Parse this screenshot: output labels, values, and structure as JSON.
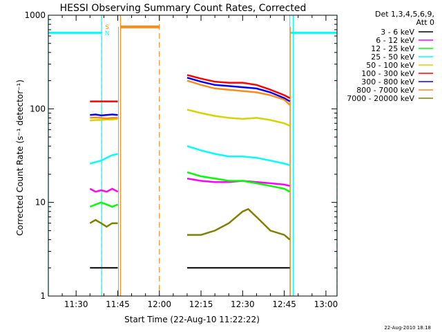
{
  "chart_data": {
    "type": "line",
    "title": "HESSI Observing Summary Count Rates, Corrected",
    "xlabel": "Start Time (22-Aug-10 11:22:22)",
    "ylabel": "Corrected Count Rate (s⁻¹ detector⁻¹)",
    "yscale": "log",
    "ylim": [
      1,
      1000
    ],
    "xlim_minutes": [
      "11:22",
      "13:02"
    ],
    "x_ticks": [
      "11:30",
      "11:45",
      "12:00",
      "12:15",
      "12:30",
      "12:45",
      "13:00"
    ],
    "x_tick_minutes": [
      30,
      45,
      60,
      75,
      90,
      105,
      120
    ],
    "y_ticks": [
      "1",
      "10",
      "100",
      "1000"
    ],
    "y_tick_values": [
      1,
      10,
      100,
      1000
    ],
    "grid": false,
    "legend_position": "right",
    "legend_header": [
      "Det 1,3,4,5,6,9,",
      "Att 0"
    ],
    "timestamp": "22-Aug-2010 18:18",
    "markers": [
      {
        "label": "S",
        "color": "#ff8c1a"
      },
      {
        "label": "N",
        "color": "#00ffff"
      }
    ],
    "x_unit": "minutes after 11:00",
    "night_intervals": [
      [
        20,
        39.2
      ],
      [
        107,
        124
      ]
    ],
    "night_markers": [
      [
        39.2,
        108.2
      ]
    ],
    "night_level": 650,
    "saa_interval": [
      46,
      60
    ],
    "saa_marker": 60,
    "saa_level": 750,
    "data_intervals": [
      [
        35,
        45
      ],
      [
        70,
        107
      ]
    ],
    "series": [
      {
        "name": "3 - 6 keV",
        "color": "#000000",
        "segments": [
          {
            "x": [
              35,
              45
            ],
            "y": [
              2,
              2
            ]
          },
          {
            "x": [
              70,
              107
            ],
            "y": [
              2,
              2
            ]
          }
        ]
      },
      {
        "name": "6 - 12 keV",
        "color": "#ff00ff",
        "segments": [
          {
            "x": [
              35,
              37,
              39,
              41,
              43,
              45
            ],
            "y": [
              14,
              13,
              13.5,
              13,
              14,
              13
            ]
          },
          {
            "x": [
              70,
              75,
              80,
              85,
              90,
              95,
              100,
              105,
              107
            ],
            "y": [
              18,
              17,
              16.5,
              16.5,
              17,
              16.5,
              16,
              15.5,
              15
            ]
          }
        ]
      },
      {
        "name": "12 - 25 keV",
        "color": "#00ff00",
        "segments": [
          {
            "x": [
              35,
              37,
              39,
              41,
              43,
              45
            ],
            "y": [
              9,
              9.5,
              10,
              9.5,
              9,
              9.5
            ]
          },
          {
            "x": [
              70,
              75,
              80,
              85,
              90,
              95,
              100,
              105,
              107
            ],
            "y": [
              21,
              19,
              18,
              17,
              17,
              16,
              15,
              14,
              13
            ]
          }
        ]
      },
      {
        "name": "25 - 50 keV",
        "color": "#00ffff",
        "segments": [
          {
            "x": [
              35,
              37,
              39,
              41,
              43,
              45
            ],
            "y": [
              26,
              27,
              28,
              30,
              32,
              33
            ]
          },
          {
            "x": [
              70,
              75,
              80,
              85,
              90,
              95,
              100,
              105,
              107
            ],
            "y": [
              40,
              36,
              33,
              31,
              31,
              30,
              28,
              26,
              25
            ]
          }
        ]
      },
      {
        "name": "50 - 100 keV",
        "color": "#d4d400",
        "segments": [
          {
            "x": [
              35,
              37,
              39,
              41,
              43,
              45
            ],
            "y": [
              75,
              76,
              76,
              77,
              77,
              78
            ]
          },
          {
            "x": [
              70,
              75,
              80,
              85,
              90,
              95,
              100,
              105,
              107
            ],
            "y": [
              98,
              90,
              84,
              80,
              78,
              80,
              76,
              70,
              66
            ]
          }
        ]
      },
      {
        "name": "100 - 300 keV",
        "color": "#ff0000",
        "segments": [
          {
            "x": [
              35,
              45
            ],
            "y": [
              120,
              120
            ]
          },
          {
            "x": [
              70,
              75,
              80,
              85,
              90,
              95,
              100,
              105,
              107
            ],
            "y": [
              230,
              210,
              195,
              190,
              190,
              180,
              160,
              140,
              130
            ]
          }
        ]
      },
      {
        "name": "300 - 800 keV",
        "color": "#0000ff",
        "segments": [
          {
            "x": [
              35,
              37,
              39,
              41,
              43,
              45
            ],
            "y": [
              86,
              87,
              85,
              86,
              87,
              86
            ]
          },
          {
            "x": [
              70,
              75,
              80,
              85,
              90,
              95,
              100,
              105,
              107
            ],
            "y": [
              215,
              195,
              180,
              175,
              170,
              165,
              150,
              130,
              120
            ]
          }
        ]
      },
      {
        "name": "800 - 7000 keV",
        "color": "#ff8c1a",
        "segments": [
          {
            "x": [
              35,
              37,
              39,
              41,
              43,
              45
            ],
            "y": [
              80,
              81,
              80,
              79,
              80,
              80
            ]
          },
          {
            "x": [
              70,
              75,
              80,
              85,
              90,
              95,
              100,
              105,
              107
            ],
            "y": [
              200,
              180,
              165,
              160,
              155,
              150,
              140,
              125,
              110
            ]
          }
        ]
      },
      {
        "name": "7000 - 20000 keV",
        "color": "#808000",
        "segments": [
          {
            "x": [
              35,
              37,
              39,
              41,
              43,
              45
            ],
            "y": [
              6,
              6.5,
              6,
              5.5,
              6,
              6
            ]
          },
          {
            "x": [
              70,
              75,
              80,
              85,
              90,
              92,
              95,
              100,
              105,
              107
            ],
            "y": [
              4.5,
              4.5,
              5,
              6,
              8,
              8.5,
              7,
              5,
              4.5,
              4
            ]
          }
        ]
      }
    ]
  }
}
